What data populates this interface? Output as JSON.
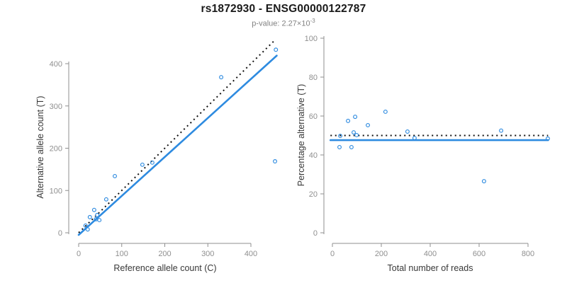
{
  "title": "rs1872930 - ENSG00000122787",
  "subtitle": {
    "text": "p-value: 2.27×10",
    "exponent": "-3"
  },
  "colors": {
    "accent_blue": "#2E8BE0",
    "identity_black": "#111111",
    "axis_gray": "#8f8f8f",
    "tick_label_gray": "#8f8f8f",
    "axis_title_gray": "#383838",
    "title_black": "#1a1a1a",
    "subtitle_gray": "#828282"
  },
  "chart_data": [
    {
      "type": "scatter",
      "name": "allele-counts",
      "xlabel": "Reference allele count (C)",
      "ylabel": "Alternative allele count (T)",
      "xticks": [
        0,
        100,
        200,
        300,
        400
      ],
      "yticks": [
        0,
        100,
        200,
        300,
        400
      ],
      "xlim": [
        0,
        475
      ],
      "ylim": [
        0,
        470
      ],
      "grid": false,
      "legend": null,
      "points": [
        [
          16,
          17
        ],
        [
          21,
          8
        ],
        [
          26,
          37
        ],
        [
          36,
          54
        ],
        [
          43,
          42
        ],
        [
          40,
          32
        ],
        [
          48,
          30
        ],
        [
          64,
          79
        ],
        [
          84,
          134
        ],
        [
          148,
          161
        ],
        [
          171,
          166
        ],
        [
          331,
          368
        ],
        [
          456,
          169
        ],
        [
          458,
          433
        ]
      ],
      "lines": [
        {
          "name": "identity-line",
          "style": "dotted",
          "color_key": "identity_black",
          "from": [
            0,
            0
          ],
          "to": [
            455,
            455
          ]
        },
        {
          "name": "regression-line",
          "style": "solid",
          "color_key": "accent_blue",
          "from": [
            0,
            -5
          ],
          "to": [
            460,
            419
          ]
        }
      ]
    },
    {
      "type": "scatter",
      "name": "percentage-vs-total",
      "xlabel": "Total number of reads",
      "ylabel": "Percentage alternative (T)",
      "xticks": [
        0,
        200,
        400,
        600,
        800
      ],
      "yticks": [
        0,
        20,
        40,
        60,
        80,
        100
      ],
      "xlim": [
        0,
        900
      ],
      "ylim": [
        0,
        100
      ],
      "grid": false,
      "legend": null,
      "points": [
        [
          29,
          44
        ],
        [
          32,
          49.8
        ],
        [
          64,
          57.5
        ],
        [
          78,
          44
        ],
        [
          87,
          51.6
        ],
        [
          93,
          59.6
        ],
        [
          99,
          50.2
        ],
        [
          145,
          55.3
        ],
        [
          217,
          62.2
        ],
        [
          307,
          52
        ],
        [
          336,
          48.7
        ],
        [
          620,
          26.5
        ],
        [
          690,
          52.5
        ],
        [
          881,
          48.4
        ]
      ],
      "lines": [
        {
          "name": "expected-50pct-line",
          "style": "dotted",
          "color_key": "identity_black",
          "from": [
            -8,
            50
          ],
          "to": [
            882,
            50
          ]
        },
        {
          "name": "observed-mean-line",
          "style": "solid",
          "color_key": "accent_blue",
          "from": [
            -8,
            47.6
          ],
          "to": [
            882,
            47.6
          ]
        }
      ]
    }
  ]
}
